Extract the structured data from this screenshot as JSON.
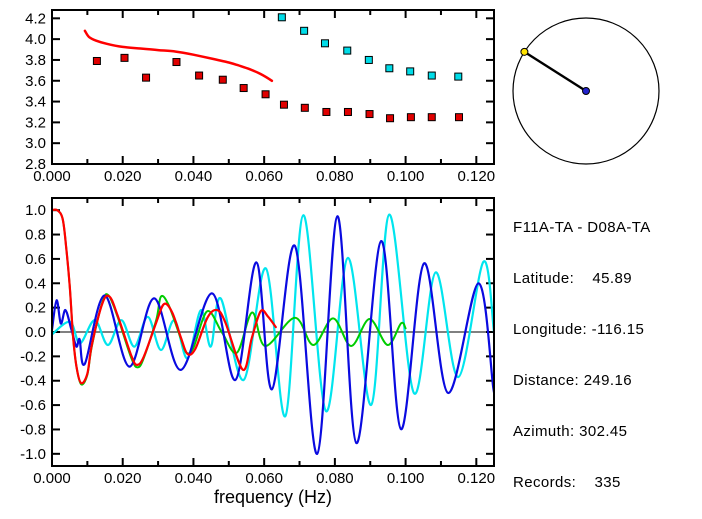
{
  "info_panel": {
    "title": "F11A-TA - D08A-TA",
    "lines": [
      "Latitude:    45.89",
      "Longitude: -116.15",
      "Distance: 249.16",
      "Azimuth: 302.45",
      "Records:    335"
    ]
  },
  "azimuth_dial": {
    "azimuth_deg": 302.45,
    "circle_color": "#000000",
    "pointer_color": "#000000",
    "center_dot_color": "#2222cc",
    "end_dot_color": "#ffe200"
  },
  "chart_data": [
    {
      "id": "dispersion-plot",
      "type": "scatter",
      "title": "",
      "xlabel": "",
      "ylabel": "",
      "xlim": [
        0,
        0.125
      ],
      "ylim": [
        2.8,
        4.28
      ],
      "grid": false,
      "xticks": {
        "major": [
          0,
          0.02,
          0.04,
          0.06,
          0.08,
          0.1,
          0.12
        ],
        "minor": [
          0.01,
          0.03,
          0.05,
          0.07,
          0.09,
          0.11
        ],
        "labels": [
          "0.000",
          "0.020",
          "0.040",
          "0.060",
          "0.080",
          "0.100",
          "0.120"
        ]
      },
      "yticks": {
        "major": [
          2.8,
          3.0,
          3.2,
          3.4,
          3.6,
          3.8,
          4.0,
          4.2
        ],
        "labels": [
          "2.8",
          "3.0",
          "3.2",
          "3.4",
          "3.6",
          "3.8",
          "4.0",
          "4.2"
        ]
      },
      "series": [
        {
          "name": "model-dispersion-curve",
          "kind": "line",
          "color": "#ff0000",
          "width": 2.5,
          "points": [
            [
              0.0093,
              4.08
            ],
            [
              0.0105,
              4.02
            ],
            [
              0.0125,
              3.985
            ],
            [
              0.0155,
              3.955
            ],
            [
              0.02,
              3.925
            ],
            [
              0.025,
              3.91
            ],
            [
              0.03,
              3.895
            ],
            [
              0.035,
              3.88
            ],
            [
              0.04,
              3.85
            ],
            [
              0.0455,
              3.81
            ],
            [
              0.05,
              3.775
            ],
            [
              0.0525,
              3.75
            ],
            [
              0.056,
              3.71
            ],
            [
              0.059,
              3.665
            ],
            [
              0.0622,
              3.6
            ]
          ]
        },
        {
          "name": "group-velocity-picks",
          "kind": "square",
          "color": "#e00000",
          "size": 7,
          "points": [
            [
              0.0127,
              3.79
            ],
            [
              0.0205,
              3.82
            ],
            [
              0.0266,
              3.63
            ],
            [
              0.0352,
              3.78
            ],
            [
              0.0416,
              3.65
            ],
            [
              0.0483,
              3.61
            ],
            [
              0.0542,
              3.53
            ],
            [
              0.0604,
              3.47
            ],
            [
              0.0656,
              3.37
            ],
            [
              0.0715,
              3.34
            ],
            [
              0.0776,
              3.3
            ],
            [
              0.0837,
              3.3
            ],
            [
              0.0898,
              3.28
            ],
            [
              0.0956,
              3.24
            ],
            [
              0.1015,
              3.25
            ],
            [
              0.1074,
              3.25
            ],
            [
              0.1151,
              3.25
            ]
          ]
        },
        {
          "name": "phase-velocity-picks",
          "kind": "square",
          "color": "#00dce8",
          "size": 7,
          "points": [
            [
              0.065,
              4.21
            ],
            [
              0.0713,
              4.08
            ],
            [
              0.0772,
              3.96
            ],
            [
              0.0835,
              3.89
            ],
            [
              0.0896,
              3.8
            ],
            [
              0.0954,
              3.72
            ],
            [
              0.1013,
              3.69
            ],
            [
              0.1074,
              3.65
            ],
            [
              0.1149,
              3.64
            ]
          ]
        }
      ]
    },
    {
      "id": "cross-spectrum-plot",
      "type": "line",
      "title": "",
      "xlabel": "frequency (Hz)",
      "ylabel": "",
      "xlim": [
        0,
        0.125
      ],
      "ylim": [
        -1.1,
        1.1
      ],
      "grid": false,
      "zero_line": true,
      "xticks": {
        "major": [
          0,
          0.02,
          0.04,
          0.06,
          0.08,
          0.1,
          0.12
        ],
        "minor": [
          0.01,
          0.03,
          0.05,
          0.07,
          0.09,
          0.11
        ],
        "labels": [
          "0.000",
          "0.020",
          "0.040",
          "0.060",
          "0.080",
          "0.100",
          "0.120"
        ]
      },
      "yticks": {
        "major": [
          -1.0,
          -0.8,
          -0.6,
          -0.4,
          -0.2,
          0.0,
          0.2,
          0.4,
          0.6,
          0.8,
          1.0
        ],
        "labels": [
          "-1.0",
          "-0.8",
          "-0.6",
          "-0.4",
          "-0.2",
          "0.0",
          "0.2",
          "0.4",
          "0.6",
          "0.8",
          "1.0"
        ]
      },
      "series": [
        {
          "name": "cyan-trace",
          "kind": "line",
          "color": "#00e5ee",
          "width": 2.2,
          "points": [
            [
              0,
              -0.02
            ],
            [
              0.0051,
              0.084
            ],
            [
              0.0079,
              -0.093
            ],
            [
              0.0121,
              0.098
            ],
            [
              0.0158,
              -0.107
            ],
            [
              0.0196,
              0.098
            ],
            [
              0.0233,
              -0.12
            ],
            [
              0.0271,
              0.125
            ],
            [
              0.0308,
              -0.148
            ],
            [
              0.0346,
              0.098
            ],
            [
              0.0383,
              -0.216
            ],
            [
              0.0421,
              0.18
            ],
            [
              0.0449,
              -0.12
            ],
            [
              0.0477,
              0.276
            ],
            [
              0.0542,
              -0.393
            ],
            [
              0.0605,
              0.522
            ],
            [
              0.066,
              -0.69
            ],
            [
              0.0711,
              0.959
            ],
            [
              0.0775,
              -0.65
            ],
            [
              0.0837,
              0.609
            ],
            [
              0.0903,
              -0.598
            ],
            [
              0.0954,
              0.964
            ],
            [
              0.1024,
              -0.503
            ],
            [
              0.1085,
              0.489
            ],
            [
              0.1149,
              -0.37
            ],
            [
              0.122,
              0.576
            ],
            [
              0.125,
              0.0
            ]
          ]
        },
        {
          "name": "green-trace",
          "kind": "line",
          "color": "#00cc00",
          "width": 2,
          "points": [
            [
              0,
              1.0
            ],
            [
              0.0015,
              1.0
            ],
            [
              0.003,
              0.93
            ],
            [
              0.004,
              0.7
            ],
            [
              0.005,
              0.38
            ],
            [
              0.006,
              -0.05
            ],
            [
              0.007,
              -0.3
            ],
            [
              0.0083,
              -0.43
            ],
            [
              0.01,
              -0.35
            ],
            [
              0.0113,
              -0.11
            ],
            [
              0.0143,
              0.25
            ],
            [
              0.016,
              0.3
            ],
            [
              0.0185,
              0.13
            ],
            [
              0.0225,
              -0.22
            ],
            [
              0.0243,
              -0.29
            ],
            [
              0.026,
              -0.21
            ],
            [
              0.0295,
              0.1
            ],
            [
              0.0308,
              0.29
            ],
            [
              0.033,
              0.22
            ],
            [
              0.0365,
              -0.06
            ],
            [
              0.038,
              -0.17
            ],
            [
              0.04,
              -0.13
            ],
            [
              0.0439,
              0.17
            ],
            [
              0.048,
              0.0
            ],
            [
              0.0523,
              -0.17
            ],
            [
              0.0566,
              0.16
            ],
            [
              0.0603,
              -0.115
            ],
            [
              0.0687,
              0.117
            ],
            [
              0.0739,
              -0.107
            ],
            [
              0.0795,
              0.112
            ],
            [
              0.0846,
              -0.115
            ],
            [
              0.0898,
              0.107
            ],
            [
              0.0949,
              -0.107
            ],
            [
              0.0987,
              0.071
            ],
            [
              0.1,
              0.03
            ]
          ]
        },
        {
          "name": "blue-trace",
          "kind": "line",
          "color": "#0a0ae0",
          "width": 2.2,
          "points": [
            [
              0,
              0.02
            ],
            [
              0.0013,
              0.26
            ],
            [
              0.0025,
              0.07
            ],
            [
              0.0038,
              0.18
            ],
            [
              0.0055,
              0.02
            ],
            [
              0.0069,
              -0.12
            ],
            [
              0.0078,
              -0.06
            ],
            [
              0.0093,
              -0.26
            ],
            [
              0.0149,
              0.3
            ],
            [
              0.0219,
              -0.284
            ],
            [
              0.0289,
              0.276
            ],
            [
              0.0364,
              -0.311
            ],
            [
              0.0453,
              0.317
            ],
            [
              0.0519,
              -0.393
            ],
            [
              0.0578,
              0.571
            ],
            [
              0.0622,
              -0.47
            ],
            [
              0.0687,
              0.707
            ],
            [
              0.075,
              -1.0
            ],
            [
              0.0807,
              0.95
            ],
            [
              0.0861,
              -0.912
            ],
            [
              0.0931,
              0.746
            ],
            [
              0.0987,
              -0.798
            ],
            [
              0.1052,
              0.563
            ],
            [
              0.112,
              -0.5
            ],
            [
              0.1206,
              0.4
            ],
            [
              0.1248,
              -0.46
            ],
            [
              0.125,
              -0.44
            ]
          ]
        },
        {
          "name": "red-trace",
          "kind": "line",
          "color": "#ff0000",
          "width": 2.2,
          "points": [
            [
              0,
              1.0
            ],
            [
              0.0015,
              1.0
            ],
            [
              0.003,
              0.93
            ],
            [
              0.004,
              0.7
            ],
            [
              0.005,
              0.38
            ],
            [
              0.006,
              -0.05
            ],
            [
              0.007,
              -0.3
            ],
            [
              0.0083,
              -0.42
            ],
            [
              0.01,
              -0.34
            ],
            [
              0.0113,
              -0.1
            ],
            [
              0.0143,
              0.24
            ],
            [
              0.0163,
              0.29
            ],
            [
              0.0185,
              0.14
            ],
            [
              0.0225,
              -0.2
            ],
            [
              0.0241,
              -0.27
            ],
            [
              0.026,
              -0.2
            ],
            [
              0.0295,
              0.08
            ],
            [
              0.0317,
              0.23
            ],
            [
              0.034,
              0.16
            ],
            [
              0.0365,
              -0.05
            ],
            [
              0.0383,
              -0.18
            ],
            [
              0.0405,
              -0.14
            ],
            [
              0.044,
              0.12
            ],
            [
              0.0467,
              0.18
            ],
            [
              0.049,
              0.08
            ],
            [
              0.054,
              -0.31
            ],
            [
              0.0565,
              -0.05
            ],
            [
              0.059,
              0.17
            ],
            [
              0.061,
              0.13
            ],
            [
              0.0633,
              0.04
            ]
          ]
        }
      ]
    }
  ]
}
